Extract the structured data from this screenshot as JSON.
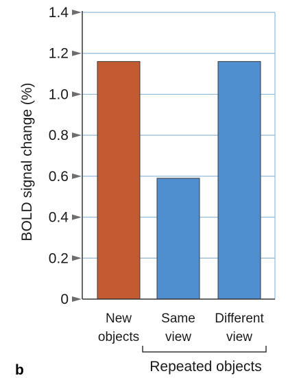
{
  "chart_data": {
    "type": "bar",
    "categories": [
      [
        "New",
        "objects"
      ],
      [
        "Same",
        "view"
      ],
      [
        "Different",
        "view"
      ]
    ],
    "values": [
      1.16,
      0.59,
      1.16
    ],
    "bar_colors": [
      "#c45a31",
      "#4f8fd0",
      "#4f8fd0"
    ],
    "ylabel": "BOLD signal change (%)",
    "ylim": [
      0,
      1.4
    ],
    "yticks": [
      0,
      0.2,
      0.4,
      0.6,
      0.8,
      1.0,
      1.2,
      1.4
    ],
    "ytick_labels": [
      "0",
      "0.2",
      "0.4",
      "0.6",
      "0.8",
      "1.0",
      "1.2",
      "1.4"
    ],
    "grid": true,
    "group_label": "Repeated objects",
    "group_span": [
      1,
      2
    ],
    "panel_label": "b"
  },
  "colors": {
    "grid": "#8fb9d8",
    "axis": "#333333",
    "tick_marker": "#6d6d6d"
  }
}
